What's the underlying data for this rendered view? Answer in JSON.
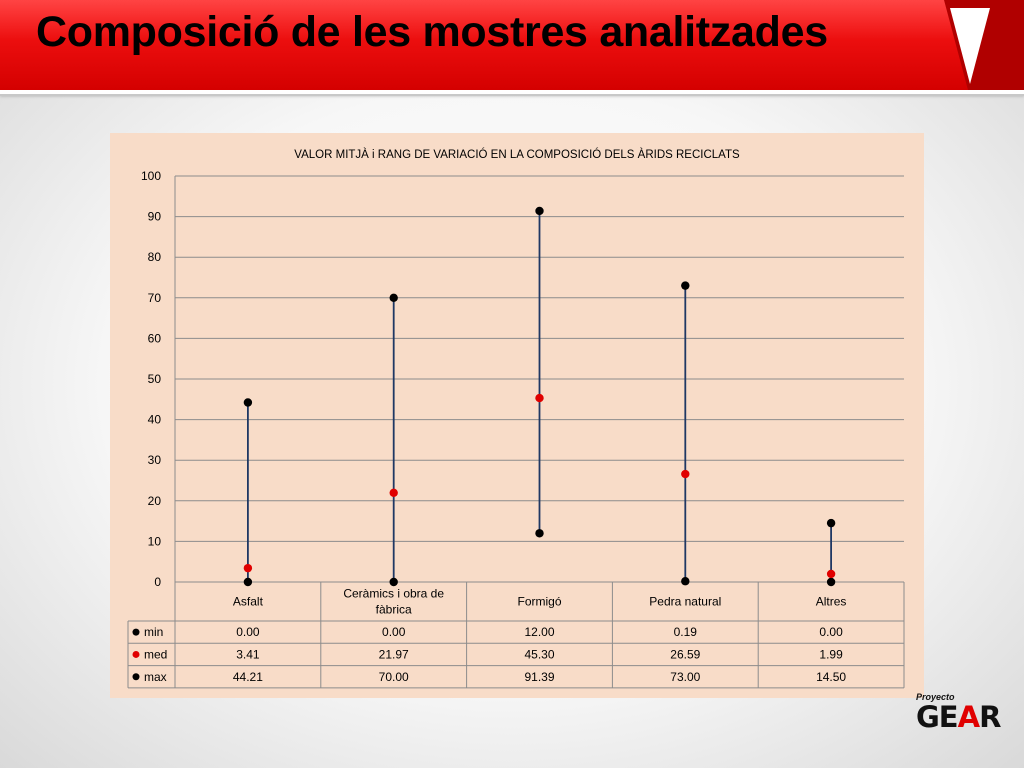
{
  "slide": {
    "title": "Composició de les mostres analitzades"
  },
  "logo": {
    "small_text": "Proyecto",
    "brand_parts": [
      "GE",
      "A",
      "R"
    ]
  },
  "colors": {
    "banner": "#e00000",
    "chart_bg": "#f8dcc8",
    "range_line": "#1f3864",
    "min_max_marker": "#000000",
    "med_marker": "#e00000"
  },
  "chart_data": {
    "type": "scatter",
    "title": "VALOR MITJÀ i RANG DE VARIACIÓ EN LA COMPOSICIÓ DELS ÀRIDS RECICLATS",
    "categories": [
      "Asfalt",
      "Ceràmics i obra de fàbrica",
      "Formigó",
      "Pedra natural",
      "Altres"
    ],
    "ylim": [
      0,
      100
    ],
    "yticks": [
      0,
      10,
      20,
      30,
      40,
      50,
      60,
      70,
      80,
      90,
      100
    ],
    "grid": true,
    "legend_position": "data-table",
    "series": [
      {
        "name": "min",
        "color": "#000000",
        "values": [
          0.0,
          0.0,
          12.0,
          0.19,
          0.0
        ],
        "labels": [
          "0.00",
          "0.00",
          "12.00",
          "0.19",
          "0.00"
        ]
      },
      {
        "name": "med",
        "color": "#e00000",
        "values": [
          3.41,
          21.97,
          45.3,
          26.59,
          1.99
        ],
        "labels": [
          "3.41",
          "21.97",
          "45.30",
          "26.59",
          "1.99"
        ]
      },
      {
        "name": "max",
        "color": "#000000",
        "values": [
          44.21,
          70.0,
          91.39,
          73.0,
          14.5
        ],
        "labels": [
          "44.21",
          "70.00",
          "91.39",
          "73.00",
          "14.50"
        ]
      }
    ]
  }
}
